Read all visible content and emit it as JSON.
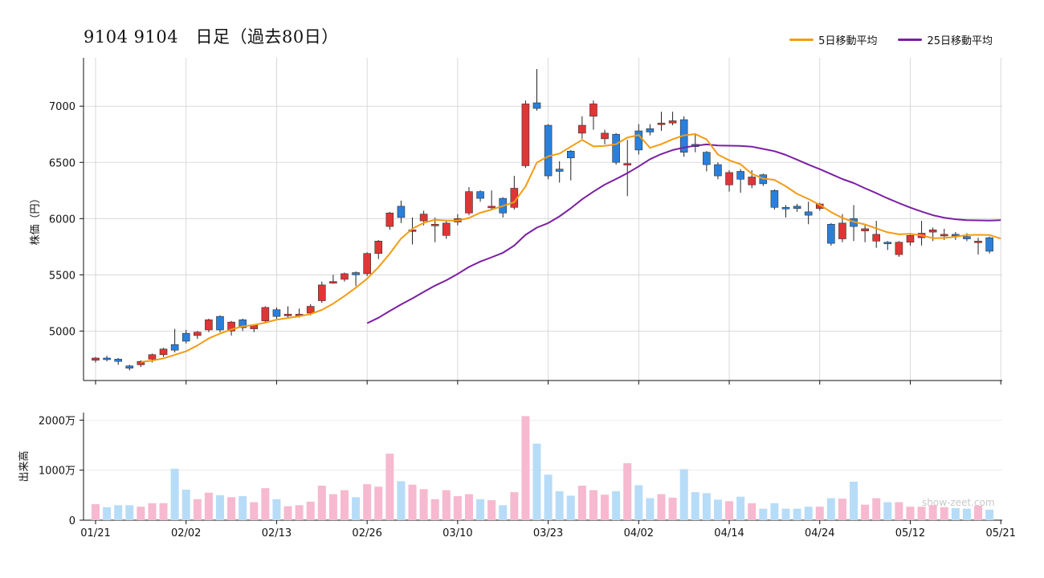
{
  "title": "9104 9104　日足（過去80日）",
  "watermark": "show-zeet.com",
  "colors": {
    "up": "#e03535",
    "down": "#2a7fdb",
    "ma5": "#f39c12",
    "ma25": "#7b1fa2",
    "vol_up": "#f6b9cf",
    "vol_down": "#b7dcf7",
    "grid": "#d0d0d0"
  },
  "chart_data": [
    {
      "type": "candlestick",
      "ylabel": "株価（円）",
      "ylim": [
        4560,
        7430
      ],
      "yticks": [
        5000,
        5500,
        6000,
        6500,
        7000
      ],
      "x_tick_labels": [
        "01/21",
        "02/02",
        "02/13",
        "02/26",
        "03/10",
        "03/23",
        "04/02",
        "04/14",
        "04/24",
        "05/12",
        "05/21"
      ],
      "x_tick_index": [
        0,
        8,
        16,
        24,
        32,
        40,
        48,
        56,
        64,
        72,
        80
      ],
      "legend": [
        {
          "name": "5日移動平均",
          "color": "#f39c12"
        },
        {
          "name": "25日移動平均",
          "color": "#7b1fa2"
        }
      ],
      "candles": [
        [
          4740,
          4760,
          4730,
          4770,
          4720
        ],
        [
          4760,
          4750,
          4740,
          4780,
          4730
        ],
        [
          4750,
          4730,
          4720,
          4760,
          4700
        ],
        [
          4690,
          4670,
          4665,
          4700,
          4650
        ],
        [
          4700,
          4730,
          4690,
          4740,
          4680
        ],
        [
          4750,
          4790,
          4740,
          4800,
          4720
        ],
        [
          4790,
          4840,
          4780,
          4850,
          4770
        ],
        [
          4880,
          4830,
          4820,
          5020,
          4810
        ],
        [
          4980,
          4910,
          4900,
          5010,
          4890
        ],
        [
          4960,
          4990,
          4950,
          5000,
          4930
        ],
        [
          5010,
          5100,
          5000,
          5110,
          4990
        ],
        [
          5130,
          5010,
          5000,
          5140,
          4990
        ],
        [
          5000,
          5080,
          4990,
          5090,
          4960
        ],
        [
          5100,
          5030,
          5020,
          5110,
          5000
        ],
        [
          5020,
          5050,
          5000,
          5060,
          4990
        ],
        [
          5090,
          5210,
          5080,
          5220,
          5070
        ],
        [
          5190,
          5130,
          5120,
          5210,
          5110
        ],
        [
          5150,
          5150,
          5140,
          5220,
          5120
        ],
        [
          5150,
          5150,
          5140,
          5200,
          5120
        ],
        [
          5160,
          5220,
          5150,
          5240,
          5140
        ],
        [
          5270,
          5410,
          5260,
          5440,
          5250
        ],
        [
          5440,
          5440,
          5430,
          5500,
          5420
        ],
        [
          5460,
          5510,
          5450,
          5520,
          5440
        ],
        [
          5520,
          5500,
          5490,
          5530,
          5400
        ],
        [
          5510,
          5690,
          5500,
          5700,
          5490
        ],
        [
          5690,
          5800,
          5680,
          5810,
          5640
        ],
        [
          5930,
          6050,
          5920,
          6060,
          5900
        ],
        [
          6110,
          6010,
          5990,
          6160,
          5960
        ],
        [
          5900,
          5900,
          5890,
          6010,
          5770
        ],
        [
          5980,
          6040,
          5970,
          6070,
          5940
        ],
        [
          5950,
          5950,
          5940,
          6010,
          5790
        ],
        [
          5850,
          5960,
          5830,
          5980,
          5820
        ],
        [
          5970,
          6000,
          5960,
          6040,
          5940
        ],
        [
          6050,
          6240,
          6040,
          6280,
          6030
        ],
        [
          6240,
          6180,
          6170,
          6250,
          6150
        ],
        [
          6110,
          6110,
          6100,
          6250,
          6080
        ],
        [
          6180,
          6050,
          6030,
          6190,
          6010
        ],
        [
          6100,
          6270,
          6090,
          6380,
          6080
        ],
        [
          6470,
          7020,
          6460,
          7050,
          6450
        ],
        [
          7030,
          6980,
          6970,
          7330,
          6960
        ],
        [
          6830,
          6380,
          6360,
          6840,
          6350
        ],
        [
          6440,
          6420,
          6410,
          6510,
          6320
        ],
        [
          6600,
          6540,
          6530,
          6610,
          6340
        ],
        [
          6760,
          6830,
          6750,
          6910,
          6710
        ],
        [
          6910,
          7020,
          6900,
          7050,
          6790
        ],
        [
          6710,
          6760,
          6700,
          6790,
          6660
        ],
        [
          6750,
          6500,
          6490,
          6760,
          6480
        ],
        [
          6490,
          6490,
          6480,
          6700,
          6200
        ],
        [
          6780,
          6610,
          6600,
          6840,
          6570
        ],
        [
          6800,
          6770,
          6760,
          6840,
          6740
        ],
        [
          6840,
          6850,
          6830,
          6950,
          6780
        ],
        [
          6850,
          6870,
          6840,
          6950,
          6830
        ],
        [
          6880,
          6590,
          6580,
          6910,
          6550
        ],
        [
          6660,
          6640,
          6620,
          6760,
          6590
        ],
        [
          6590,
          6480,
          6460,
          6600,
          6420
        ],
        [
          6480,
          6380,
          6360,
          6500,
          6350
        ],
        [
          6300,
          6410,
          6290,
          6430,
          6240
        ],
        [
          6420,
          6350,
          6340,
          6440,
          6230
        ],
        [
          6300,
          6370,
          6280,
          6430,
          6270
        ],
        [
          6390,
          6310,
          6300,
          6400,
          6290
        ],
        [
          6250,
          6100,
          6090,
          6260,
          6080
        ],
        [
          6100,
          6090,
          6080,
          6120,
          6010
        ],
        [
          6110,
          6090,
          6080,
          6130,
          6060
        ],
        [
          6060,
          6030,
          6020,
          6150,
          5950
        ],
        [
          6090,
          6130,
          6080,
          6140,
          6070
        ],
        [
          5950,
          5780,
          5770,
          5960,
          5760
        ],
        [
          5820,
          5960,
          5810,
          6040,
          5790
        ],
        [
          6000,
          5930,
          5920,
          6120,
          5800
        ],
        [
          5890,
          5910,
          5880,
          5940,
          5790
        ],
        [
          5800,
          5860,
          5790,
          5980,
          5740
        ],
        [
          5790,
          5780,
          5770,
          5800,
          5720
        ],
        [
          5680,
          5790,
          5670,
          5800,
          5660
        ],
        [
          5790,
          5850,
          5780,
          5860,
          5760
        ],
        [
          5830,
          5870,
          5820,
          5980,
          5760
        ],
        [
          5880,
          5900,
          5870,
          5920,
          5800
        ],
        [
          5860,
          5860,
          5850,
          5910,
          5810
        ],
        [
          5860,
          5850,
          5840,
          5880,
          5810
        ],
        [
          5840,
          5820,
          5810,
          5870,
          5800
        ],
        [
          5800,
          5800,
          5790,
          5830,
          5680
        ],
        [
          5830,
          5710,
          5700,
          5840,
          5690
        ]
      ],
      "ma5": [
        null,
        null,
        null,
        null,
        4725,
        4737,
        4757,
        4788,
        4820,
        4872,
        4934,
        4978,
        5014,
        5042,
        5054,
        5075,
        5101,
        5116,
        5131,
        5151,
        5188,
        5244,
        5312,
        5386,
        5466,
        5568,
        5688,
        5822,
        5910,
        5962,
        5990,
        5982,
        5982,
        6006,
        6052,
        6080,
        6112,
        6146,
        6286,
        6498,
        6554,
        6578,
        6640,
        6700,
        6642,
        6646,
        6662,
        6720,
        6744,
        6630,
        6662,
        6706,
        6740,
        6752,
        6704,
        6570,
        6518,
        6484,
        6398,
        6356,
        6344,
        6288,
        6220,
        6174,
        6122,
        6058,
        6006,
        5972,
        5948,
        5912,
        5878,
        5860,
        5864,
        5850,
        5826,
        5828,
        5838,
        5854,
        5856,
        5854,
        5822
      ],
      "ma25": [
        null,
        null,
        null,
        null,
        null,
        null,
        null,
        null,
        null,
        null,
        null,
        null,
        null,
        null,
        null,
        null,
        null,
        null,
        null,
        null,
        null,
        null,
        null,
        null,
        5070,
        5118,
        5178,
        5236,
        5290,
        5348,
        5404,
        5452,
        5508,
        5570,
        5618,
        5656,
        5696,
        5760,
        5856,
        5920,
        5960,
        6020,
        6092,
        6172,
        6240,
        6302,
        6352,
        6404,
        6464,
        6528,
        6574,
        6610,
        6632,
        6648,
        6660,
        6650,
        6648,
        6646,
        6640,
        6620,
        6600,
        6566,
        6524,
        6480,
        6440,
        6396,
        6352,
        6316,
        6270,
        6226,
        6180,
        6138,
        6098,
        6062,
        6030,
        6008,
        5994,
        5986,
        5984,
        5982,
        5986
      ]
    },
    {
      "type": "bar",
      "ylabel": "出来高",
      "ylim": [
        0,
        2150
      ],
      "yticks": [
        0,
        1000,
        2000
      ],
      "ytick_labels": [
        "0",
        "1000万",
        "2000万"
      ],
      "volume": [
        320,
        260,
        300,
        300,
        270,
        340,
        340,
        1030,
        610,
        420,
        550,
        500,
        460,
        480,
        360,
        640,
        420,
        280,
        300,
        370,
        690,
        520,
        600,
        460,
        720,
        670,
        1330,
        780,
        710,
        620,
        420,
        600,
        480,
        520,
        420,
        400,
        300,
        560,
        2080,
        1530,
        910,
        580,
        490,
        690,
        600,
        510,
        580,
        1140,
        700,
        440,
        520,
        450,
        1020,
        560,
        540,
        410,
        380,
        470,
        340,
        230,
        340,
        230,
        230,
        270,
        270,
        440,
        430,
        770,
        310,
        440,
        360,
        360,
        270,
        270,
        300,
        260,
        240,
        230,
        290,
        210
      ]
    }
  ]
}
